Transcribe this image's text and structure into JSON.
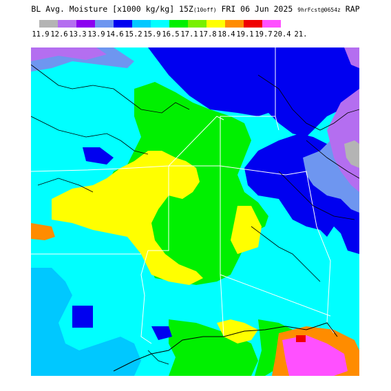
{
  "title": {
    "main": "BL Avg. Moisture [x1000 kg/kg] 15Z",
    "tag": "(10off)",
    "date": " FRI 06 Jun 2025 ",
    "fcst": "9hrFcst@0654z",
    "model": " RAP"
  },
  "legend": {
    "colors": [
      "#b4b4b4",
      "#b46ef0",
      "#8c00f0",
      "#6e96f0",
      "#0000f0",
      "#00c8ff",
      "#00ffff",
      "#00f000",
      "#78f000",
      "#ffff00",
      "#ff8c00",
      "#f00000",
      "#ff50ff"
    ],
    "labels": [
      "11.9",
      "12.6",
      "13.3",
      "13.9",
      "14.6",
      "15.2",
      "15.9",
      "16.5",
      "17.1",
      "17.8",
      "18.4",
      "19.1",
      "19.7",
      "20.4",
      "21."
    ]
  },
  "map_layers": {
    "background_color": "#00ffff",
    "water_color": "#00c8ff",
    "boundary_color": "#ffffff",
    "contour_color": "#000000"
  }
}
